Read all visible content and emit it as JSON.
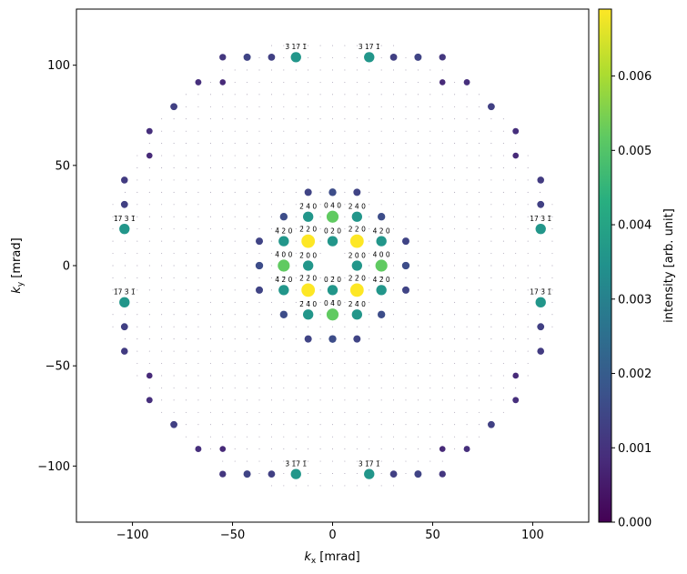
{
  "chart_data": {
    "type": "scatter",
    "xlabel": "k_x [mrad]",
    "ylabel": "k_y [mrad]",
    "xlim": [
      -128,
      128
    ],
    "ylim": [
      -128,
      128
    ],
    "xticks": [
      -100,
      -50,
      0,
      50,
      100
    ],
    "yticks": [
      -100,
      -50,
      0,
      50,
      100
    ],
    "colorbar": {
      "label": "intensity [arb. unit]",
      "range": [
        0,
        0.0069
      ],
      "ticks": [
        "0.000",
        "0.001",
        "0.002",
        "0.003",
        "0.004",
        "0.005",
        "0.006"
      ],
      "colormap": "viridis"
    },
    "labeled_spots": [
      {
        "label": "2̄ 2̄ 0",
        "x": -12.2,
        "y": -12.2,
        "intensity": 0.0069
      },
      {
        "label": "2̄ 2 0",
        "x": -12.2,
        "y": 12.2,
        "intensity": 0.0069
      },
      {
        "label": "2 2̄ 0",
        "x": 12.2,
        "y": -12.2,
        "intensity": 0.0069
      },
      {
        "label": "2 2 0",
        "x": 12.2,
        "y": 12.2,
        "intensity": 0.0069
      },
      {
        "label": "4̄ 0 0",
        "x": -24.4,
        "y": 0,
        "intensity": 0.0052
      },
      {
        "label": "4 0 0",
        "x": 24.4,
        "y": 0,
        "intensity": 0.0052
      },
      {
        "label": "0 4 0",
        "x": 0,
        "y": 24.4,
        "intensity": 0.0052
      },
      {
        "label": "0 4̄ 0",
        "x": 0,
        "y": -24.4,
        "intensity": 0.0052
      },
      {
        "label": "2̄ 0 0",
        "x": -12.2,
        "y": 0,
        "intensity": 0.0036
      },
      {
        "label": "2 0 0",
        "x": 12.2,
        "y": 0,
        "intensity": 0.0036
      },
      {
        "label": "0 2 0",
        "x": 0,
        "y": 12.2,
        "intensity": 0.0036
      },
      {
        "label": "0 2̄ 0",
        "x": 0,
        "y": -12.2,
        "intensity": 0.0036
      },
      {
        "label": "4̄ 2 0",
        "x": -24.4,
        "y": 12.2,
        "intensity": 0.0036
      },
      {
        "label": "4 2 0",
        "x": 24.4,
        "y": 12.2,
        "intensity": 0.0036
      },
      {
        "label": "4̄ 2̄ 0",
        "x": -24.4,
        "y": -12.2,
        "intensity": 0.0036
      },
      {
        "label": "4 2̄ 0",
        "x": 24.4,
        "y": -12.2,
        "intensity": 0.0036
      },
      {
        "label": "2̄ 4 0",
        "x": -12.2,
        "y": 24.4,
        "intensity": 0.0036
      },
      {
        "label": "2 4 0",
        "x": 12.2,
        "y": 24.4,
        "intensity": 0.0036
      },
      {
        "label": "2̄ 4̄ 0",
        "x": -12.2,
        "y": -24.4,
        "intensity": 0.0036
      },
      {
        "label": "2 4̄ 0",
        "x": 12.2,
        "y": -24.4,
        "intensity": 0.0036
      },
      {
        "label": "3̄ 17 1̄",
        "x": -18.3,
        "y": 104.0,
        "intensity": 0.0036
      },
      {
        "label": "3 17 1̄",
        "x": 18.3,
        "y": 104.0,
        "intensity": 0.0036
      },
      {
        "label": "3̄ 1̄7̄ 1̄",
        "x": -18.3,
        "y": -104.0,
        "intensity": 0.0036
      },
      {
        "label": "3 1̄7̄ 1̄",
        "x": 18.3,
        "y": -104.0,
        "intensity": 0.0036
      },
      {
        "label": "1̄7̄ 3 1̄",
        "x": -104.0,
        "y": 18.3,
        "intensity": 0.0036
      },
      {
        "label": "17 3 1̄",
        "x": 104.0,
        "y": 18.3,
        "intensity": 0.0036
      },
      {
        "label": "1̄7̄ 3̄ 1̄",
        "x": -104.0,
        "y": -18.3,
        "intensity": 0.0036
      },
      {
        "label": "17 3̄ 1̄",
        "x": 104.0,
        "y": -18.3,
        "intensity": 0.0036
      }
    ],
    "spots": [
      {
        "x": -24.4,
        "y": 24.4,
        "intensity": 0.0016
      },
      {
        "x": 24.4,
        "y": 24.4,
        "intensity": 0.0016
      },
      {
        "x": -24.4,
        "y": -24.4,
        "intensity": 0.0016
      },
      {
        "x": 24.4,
        "y": -24.4,
        "intensity": 0.0016
      },
      {
        "x": -36.6,
        "y": 0,
        "intensity": 0.0016
      },
      {
        "x": 36.6,
        "y": 0,
        "intensity": 0.0016
      },
      {
        "x": 0,
        "y": 36.6,
        "intensity": 0.0016
      },
      {
        "x": 0,
        "y": -36.6,
        "intensity": 0.0016
      },
      {
        "x": -36.6,
        "y": 12.2,
        "intensity": 0.0014
      },
      {
        "x": 36.6,
        "y": 12.2,
        "intensity": 0.0014
      },
      {
        "x": -36.6,
        "y": -12.2,
        "intensity": 0.0014
      },
      {
        "x": 36.6,
        "y": -12.2,
        "intensity": 0.0014
      },
      {
        "x": -12.2,
        "y": 36.6,
        "intensity": 0.0014
      },
      {
        "x": 12.2,
        "y": 36.6,
        "intensity": 0.0014
      },
      {
        "x": -12.2,
        "y": -36.6,
        "intensity": 0.0014
      },
      {
        "x": 12.2,
        "y": -36.6,
        "intensity": 0.0014
      },
      {
        "x": -42.7,
        "y": 104.0,
        "intensity": 0.0014
      },
      {
        "x": 42.7,
        "y": 104.0,
        "intensity": 0.0014
      },
      {
        "x": -42.7,
        "y": -104.0,
        "intensity": 0.0014
      },
      {
        "x": 42.7,
        "y": -104.0,
        "intensity": 0.0014
      },
      {
        "x": -30.5,
        "y": 104.0,
        "intensity": 0.0013
      },
      {
        "x": 30.5,
        "y": 104.0,
        "intensity": 0.0013
      },
      {
        "x": -30.5,
        "y": -104.0,
        "intensity": 0.0013
      },
      {
        "x": 30.5,
        "y": -104.0,
        "intensity": 0.0013
      },
      {
        "x": -54.9,
        "y": 104.0,
        "intensity": 0.0011
      },
      {
        "x": 54.9,
        "y": 104.0,
        "intensity": 0.0011
      },
      {
        "x": -54.9,
        "y": -104.0,
        "intensity": 0.0011
      },
      {
        "x": 54.9,
        "y": -104.0,
        "intensity": 0.0011
      },
      {
        "x": -79.3,
        "y": 79.3,
        "intensity": 0.0013
      },
      {
        "x": 79.3,
        "y": 79.3,
        "intensity": 0.0013
      },
      {
        "x": -79.3,
        "y": -79.3,
        "intensity": 0.0013
      },
      {
        "x": 79.3,
        "y": -79.3,
        "intensity": 0.0013
      },
      {
        "x": -104.0,
        "y": 30.5,
        "intensity": 0.0013
      },
      {
        "x": 104.0,
        "y": 30.5,
        "intensity": 0.0013
      },
      {
        "x": -104.0,
        "y": -30.5,
        "intensity": 0.0013
      },
      {
        "x": 104.0,
        "y": -30.5,
        "intensity": 0.0013
      },
      {
        "x": -104.0,
        "y": 42.7,
        "intensity": 0.0012
      },
      {
        "x": 104.0,
        "y": 42.7,
        "intensity": 0.0012
      },
      {
        "x": -104.0,
        "y": -42.7,
        "intensity": 0.0012
      },
      {
        "x": 104.0,
        "y": -42.7,
        "intensity": 0.0012
      },
      {
        "x": -91.5,
        "y": 67.1,
        "intensity": 0.0009
      },
      {
        "x": 91.5,
        "y": 67.1,
        "intensity": 0.0009
      },
      {
        "x": -91.5,
        "y": -67.1,
        "intensity": 0.0009
      },
      {
        "x": 91.5,
        "y": -67.1,
        "intensity": 0.0009
      },
      {
        "x": -67.1,
        "y": 91.5,
        "intensity": 0.0009
      },
      {
        "x": 67.1,
        "y": 91.5,
        "intensity": 0.0009
      },
      {
        "x": -67.1,
        "y": -91.5,
        "intensity": 0.0009
      },
      {
        "x": 67.1,
        "y": -91.5,
        "intensity": 0.0009
      },
      {
        "x": -91.5,
        "y": 54.9,
        "intensity": 0.0008
      },
      {
        "x": 91.5,
        "y": 54.9,
        "intensity": 0.0008
      },
      {
        "x": -91.5,
        "y": -54.9,
        "intensity": 0.0008
      },
      {
        "x": 91.5,
        "y": -54.9,
        "intensity": 0.0008
      },
      {
        "x": -54.9,
        "y": 91.5,
        "intensity": 0.0008
      },
      {
        "x": 54.9,
        "y": 91.5,
        "intensity": 0.0008
      },
      {
        "x": -54.9,
        "y": -91.5,
        "intensity": 0.0008
      },
      {
        "x": 54.9,
        "y": -91.5,
        "intensity": 0.0008
      }
    ]
  }
}
